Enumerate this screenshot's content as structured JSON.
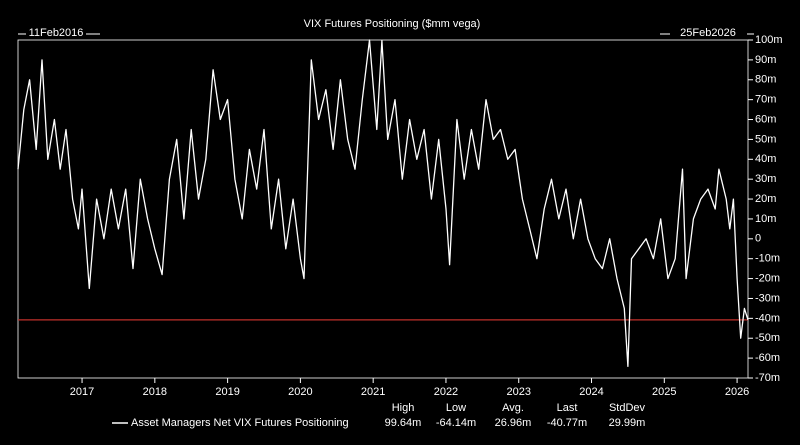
{
  "chart_data": {
    "type": "line",
    "title": "VIX Futures Positioning ($mm vega)",
    "start_label": "11Feb2016",
    "end_label": "25Feb2026",
    "xlim": [
      2016.12,
      2026.15
    ],
    "xticks": [
      2017,
      2018,
      2019,
      2020,
      2021,
      2022,
      2023,
      2024,
      2025,
      2026
    ],
    "ylim": [
      -70,
      100
    ],
    "yticks": [
      {
        "value": 100,
        "label": "100m"
      },
      {
        "value": 90,
        "label": "90m"
      },
      {
        "value": 80,
        "label": "80m"
      },
      {
        "value": 70,
        "label": "70m"
      },
      {
        "value": 60,
        "label": "60m"
      },
      {
        "value": 50,
        "label": "50m"
      },
      {
        "value": 40,
        "label": "40m"
      },
      {
        "value": 30,
        "label": "30m"
      },
      {
        "value": 20,
        "label": "20m"
      },
      {
        "value": 10,
        "label": "10m"
      },
      0,
      {
        "value": -10,
        "label": "-10m"
      },
      {
        "value": -20,
        "label": "-20m"
      },
      {
        "value": -30,
        "label": "-30m"
      },
      {
        "value": -40,
        "label": "-40m"
      },
      {
        "value": -50,
        "label": "-50m"
      },
      {
        "value": -60,
        "label": "-60m"
      },
      {
        "value": -70,
        "label": "-70m"
      }
    ],
    "grid": false,
    "reference_line": {
      "value": -40.77,
      "color": "#c0302a"
    },
    "x": [
      2016.12,
      2016.2,
      2016.28,
      2016.37,
      2016.45,
      2016.53,
      2016.62,
      2016.7,
      2016.78,
      2016.87,
      2016.95,
      2017.0,
      2017.1,
      2017.2,
      2017.3,
      2017.4,
      2017.5,
      2017.6,
      2017.7,
      2017.8,
      2017.9,
      2018.0,
      2018.1,
      2018.2,
      2018.3,
      2018.4,
      2018.5,
      2018.6,
      2018.7,
      2018.8,
      2018.9,
      2019.0,
      2019.1,
      2019.2,
      2019.3,
      2019.4,
      2019.5,
      2019.6,
      2019.7,
      2019.8,
      2019.9,
      2020.0,
      2020.05,
      2020.15,
      2020.25,
      2020.35,
      2020.45,
      2020.55,
      2020.65,
      2020.75,
      2020.85,
      2020.95,
      2021.05,
      2021.12,
      2021.2,
      2021.3,
      2021.4,
      2021.5,
      2021.6,
      2021.7,
      2021.8,
      2021.9,
      2022.0,
      2022.05,
      2022.15,
      2022.25,
      2022.35,
      2022.45,
      2022.55,
      2022.65,
      2022.75,
      2022.85,
      2022.95,
      2023.05,
      2023.15,
      2023.25,
      2023.35,
      2023.45,
      2023.55,
      2023.65,
      2023.75,
      2023.85,
      2023.95,
      2024.05,
      2024.15,
      2024.25,
      2024.35,
      2024.45,
      2024.5,
      2024.55,
      2024.65,
      2024.75,
      2024.85,
      2024.95,
      2025.05,
      2025.15,
      2025.25,
      2025.3,
      2025.4,
      2025.5,
      2025.6,
      2025.7,
      2025.75,
      2025.85,
      2025.9,
      2025.95,
      2026.0,
      2026.05,
      2026.1,
      2026.15
    ],
    "series": [
      {
        "name": "Asset Managers Net VIX Futures Positioning",
        "color": "#ffffff",
        "values": [
          35,
          65,
          80,
          45,
          90,
          40,
          60,
          35,
          55,
          20,
          5,
          25,
          -25,
          20,
          0,
          25,
          5,
          25,
          -15,
          30,
          10,
          -5,
          -18,
          30,
          50,
          10,
          55,
          20,
          40,
          85,
          60,
          70,
          30,
          10,
          45,
          25,
          55,
          5,
          30,
          -5,
          20,
          -10,
          -20,
          90,
          60,
          75,
          45,
          80,
          50,
          35,
          70,
          100,
          55,
          99.64,
          50,
          70,
          30,
          60,
          40,
          55,
          20,
          50,
          15,
          -13,
          60,
          30,
          55,
          35,
          70,
          50,
          55,
          40,
          45,
          20,
          5,
          -10,
          15,
          30,
          10,
          25,
          0,
          20,
          0,
          -10,
          -15,
          0,
          -20,
          -35,
          -64.14,
          -10,
          -5,
          0,
          -10,
          10,
          -20,
          -10,
          35,
          -20,
          10,
          20,
          25,
          15,
          35,
          20,
          5,
          20,
          -20,
          -50,
          -35,
          -40.77
        ]
      }
    ],
    "stats": [
      {
        "name": "High",
        "text": "99.64m"
      },
      {
        "name": "Low",
        "text": "-64.14m"
      },
      {
        "name": "Avg.",
        "text": "26.96m"
      },
      {
        "name": "Last",
        "text": "-40.77m"
      },
      {
        "name": "StdDev",
        "text": "29.99m"
      }
    ]
  }
}
